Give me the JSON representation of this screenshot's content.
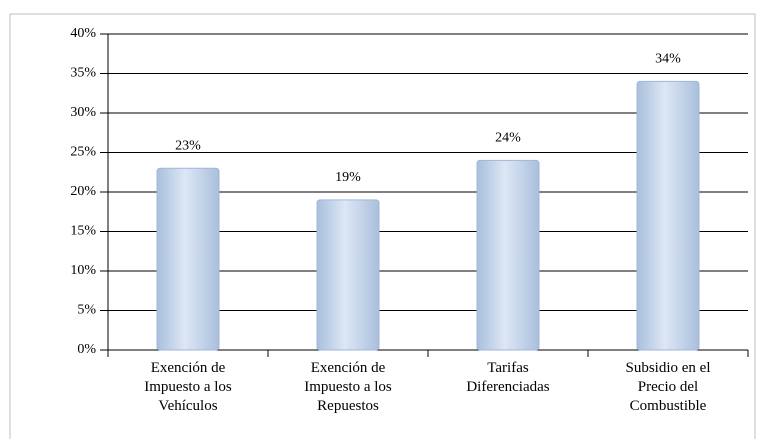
{
  "chart_data": {
    "type": "bar",
    "categories": [
      "Exención de Impuesto a los Vehículos",
      "Exención de Impuesto a los Repuestos",
      "Tarifas Diferenciadas",
      "Subsidio en el Precio del Combustible"
    ],
    "values": [
      23,
      19,
      24,
      34
    ],
    "value_labels": [
      "23%",
      "19%",
      "24%",
      "34%"
    ],
    "color": "#c6d6ec",
    "ylim": [
      0,
      40
    ],
    "yticks": [
      {
        "value": 0,
        "label": "0%"
      },
      {
        "value": 5,
        "label": "5%"
      },
      {
        "value": 10,
        "label": "10%"
      },
      {
        "value": 15,
        "label": "15%"
      },
      {
        "value": 20,
        "label": "20%"
      },
      {
        "value": 25,
        "label": "25%"
      },
      {
        "value": 30,
        "label": "30%"
      },
      {
        "value": 35,
        "label": "35%"
      },
      {
        "value": 40,
        "label": "40%"
      }
    ],
    "grid": true
  }
}
